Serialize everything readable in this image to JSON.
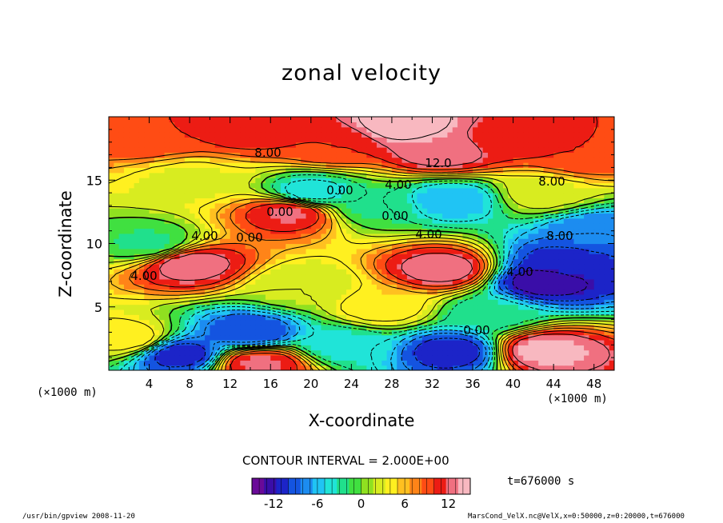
{
  "chart_data": {
    "type": "heatmap",
    "title": "zonal velocity",
    "xlabel": "X-coordinate",
    "ylabel": "Z-coordinate",
    "x_unit": "(×1000 m)",
    "x_unit_right": "(×1000 m)",
    "xlim": [
      0,
      50
    ],
    "ylim": [
      0,
      20
    ],
    "x_ticks": [
      4,
      8,
      12,
      16,
      20,
      24,
      28,
      32,
      36,
      40,
      44,
      48
    ],
    "y_ticks": [
      5,
      10,
      15
    ],
    "contour_interval_text": "CONTOUR INTERVAL = 2.000E+00",
    "colorbar": {
      "min": -15,
      "max": 15,
      "ticks": [
        -12,
        -6,
        0,
        6,
        12
      ],
      "colors": [
        "#6a0a98",
        "#3a0ea8",
        "#1c24c8",
        "#1454e0",
        "#1c8cf0",
        "#20c4f4",
        "#20e4d8",
        "#20e08c",
        "#40e040",
        "#90e020",
        "#d8ec20",
        "#fff020",
        "#ffc020",
        "#ff8418",
        "#ff4c14",
        "#ec1c14",
        "#f07080",
        "#f8b8c0"
      ]
    },
    "contour_labels": [
      "8.00",
      "12.0",
      "0.00",
      "4.00",
      "8.00",
      "0.00",
      "4.00",
      "4.00",
      "0.00",
      "4.00",
      "8.00",
      "4.00",
      "0.00",
      "0.00"
    ],
    "features": [
      {
        "x": 4.0,
        "z": 18.5,
        "u": 10
      },
      {
        "x": 14.0,
        "z": 19.0,
        "u": 11
      },
      {
        "x": 22.0,
        "z": 17.8,
        "u": 10
      },
      {
        "x": 29.0,
        "z": 19.4,
        "u": 15
      },
      {
        "x": 33.0,
        "z": 17.2,
        "u": 13
      },
      {
        "x": 40.0,
        "z": 18.2,
        "u": 11
      },
      {
        "x": 47.0,
        "z": 17.0,
        "u": 10
      },
      {
        "x": 8.0,
        "z": 15.0,
        "u": 3
      },
      {
        "x": 20.0,
        "z": 14.0,
        "u": -5
      },
      {
        "x": 18.0,
        "z": 12.5,
        "u": 12
      },
      {
        "x": 26.0,
        "z": 13.0,
        "u": -2
      },
      {
        "x": 34.0,
        "z": 13.5,
        "u": -6
      },
      {
        "x": 43.0,
        "z": 14.0,
        "u": 3
      },
      {
        "x": 8.0,
        "z": 8.4,
        "u": 13
      },
      {
        "x": 33.0,
        "z": 8.0,
        "u": 13
      },
      {
        "x": 27.0,
        "z": 5.0,
        "u": 5
      },
      {
        "x": 4.0,
        "z": 10.0,
        "u": -2
      },
      {
        "x": 45.0,
        "z": 8.5,
        "u": -11
      },
      {
        "x": 48.0,
        "z": 11.0,
        "u": -8
      },
      {
        "x": 43.0,
        "z": 7.0,
        "u": -13
      },
      {
        "x": 14.0,
        "z": 3.0,
        "u": -10
      },
      {
        "x": 7.0,
        "z": 1.3,
        "u": -11
      },
      {
        "x": 2.0,
        "z": 2.5,
        "u": 5
      },
      {
        "x": 23.0,
        "z": 2.0,
        "u": -4
      },
      {
        "x": 34.0,
        "z": 1.5,
        "u": -11
      },
      {
        "x": 43.0,
        "z": 1.6,
        "u": 14
      },
      {
        "x": 15.0,
        "z": 0.6,
        "u": 12
      },
      {
        "x": 19.0,
        "z": 6.5,
        "u": 2
      },
      {
        "x": 38.0,
        "z": 4.5,
        "u": -3
      }
    ]
  },
  "time_label": "t=676000 s",
  "footer_left": "/usr/bin/gpview  2008-11-20",
  "footer_right": "MarsCond_VelX.nc@VelX,x=0:50000,z=0:20000,t=676000"
}
